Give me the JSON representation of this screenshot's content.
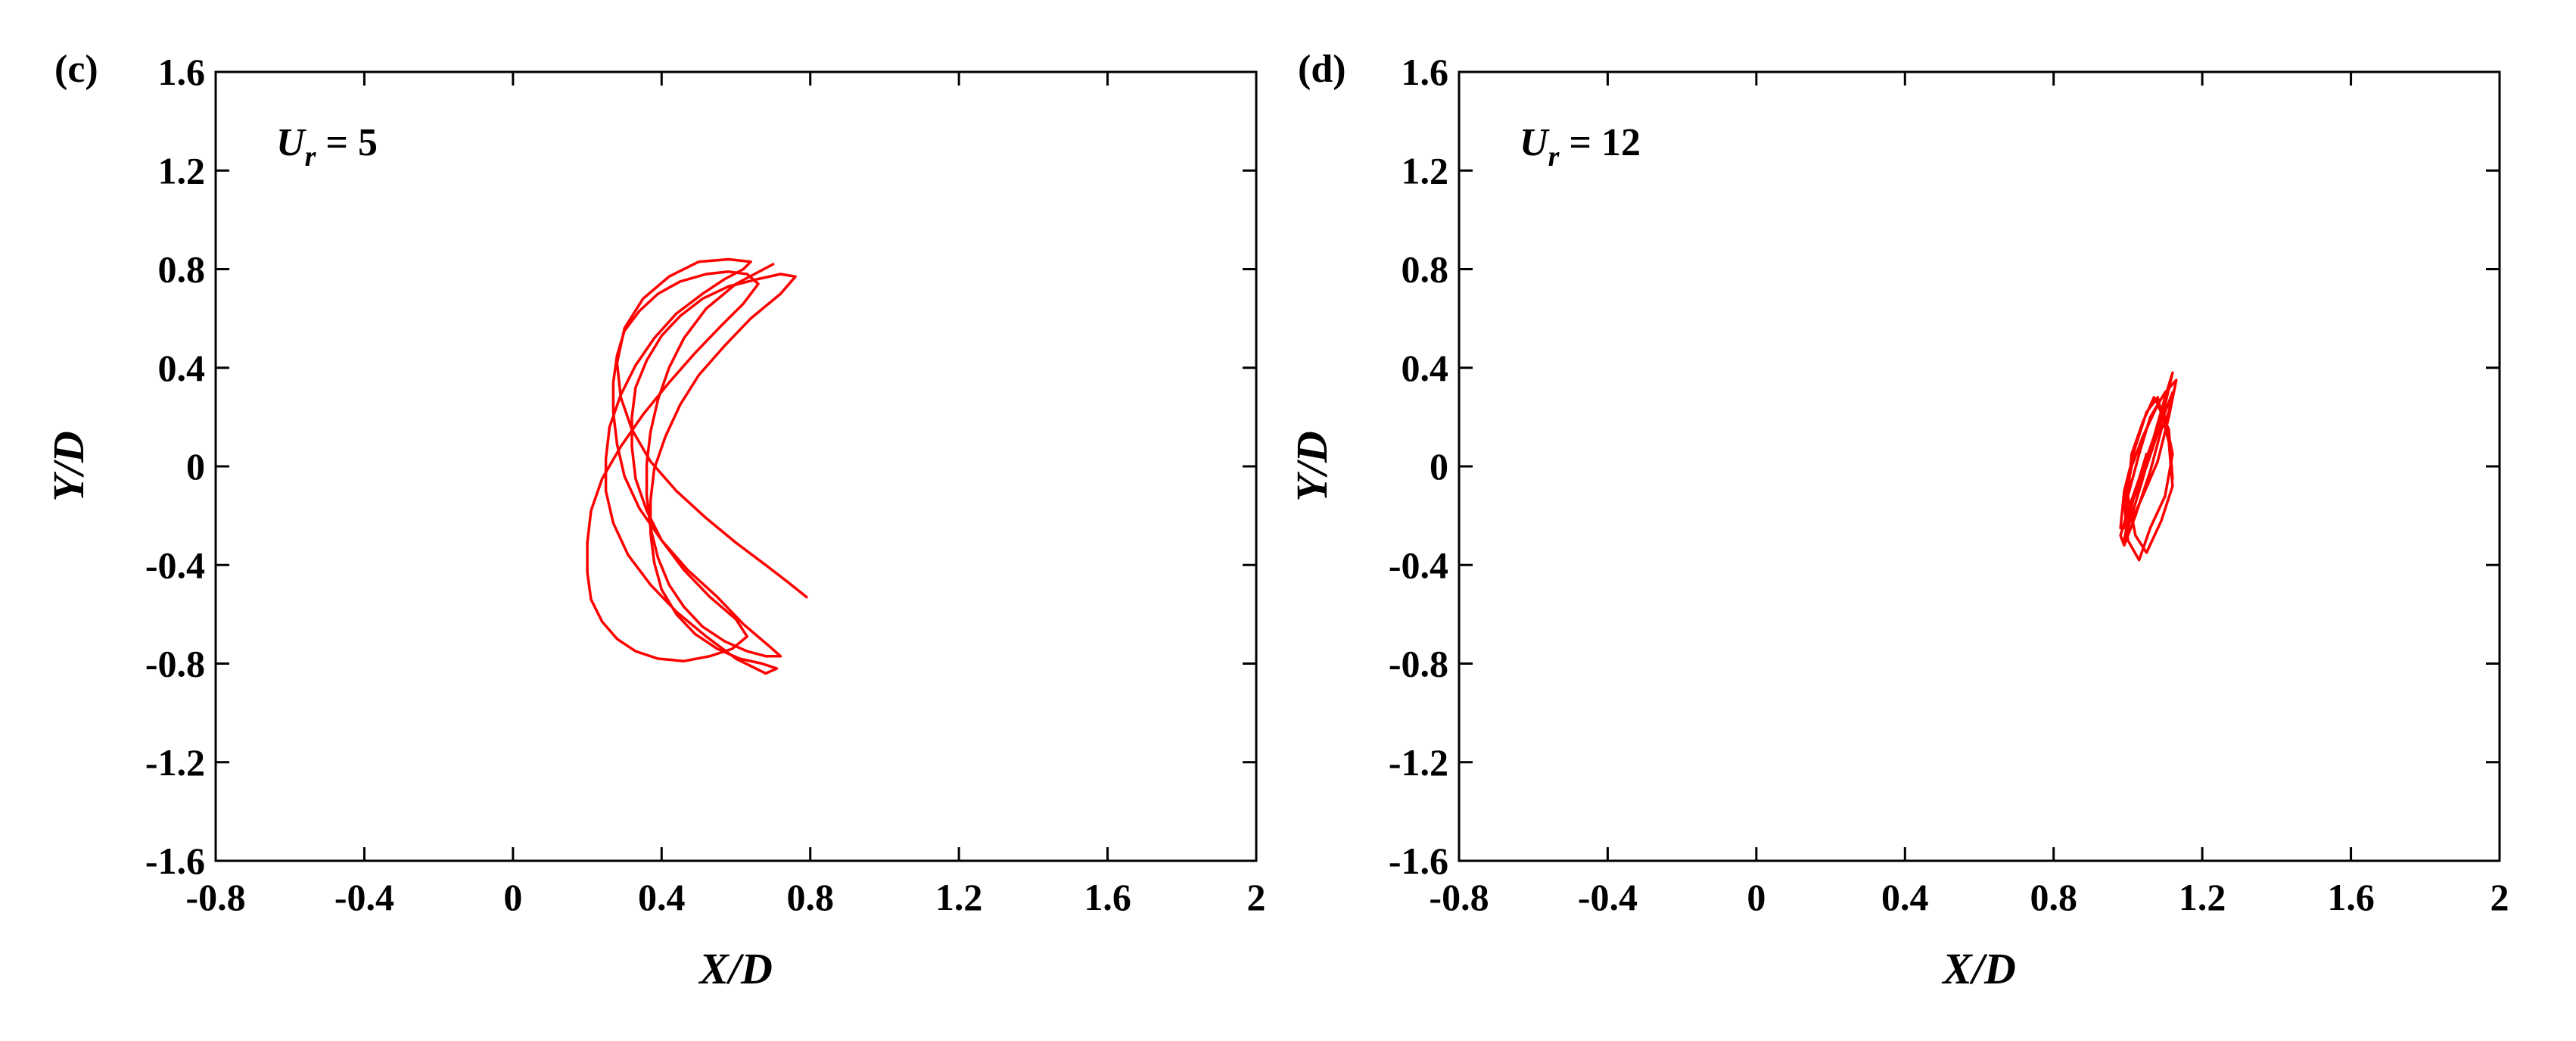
{
  "figure": {
    "panels_count": 2
  },
  "chart_data": [
    {
      "type": "line",
      "panel_label": "(c)",
      "annotation": {
        "symbol": "U",
        "subscript": "r",
        "value": " = 5"
      },
      "xlabel": "X/D",
      "ylabel": "Y/D",
      "xlim": [
        -0.8,
        2
      ],
      "ylim": [
        -1.6,
        1.6
      ],
      "xticks": [
        -0.8,
        -0.4,
        0,
        0.4,
        0.8,
        1.2,
        1.6,
        2
      ],
      "yticks": [
        -1.6,
        -1.2,
        -0.8,
        -0.4,
        0,
        0.4,
        0.8,
        1.2,
        1.6
      ],
      "xtick_labels": [
        "-0.8",
        "-0.4",
        "0",
        "0.4",
        "0.8",
        "1.2",
        "1.6",
        "2"
      ],
      "ytick_labels": [
        "-1.6",
        "-1.2",
        "-0.8",
        "-0.4",
        "0",
        "0.4",
        "0.8",
        "1.2",
        "1.6"
      ],
      "grid": false,
      "line_color": "#ff0000",
      "series": [
        {
          "x": [
            0.7,
            0.6,
            0.52,
            0.46,
            0.42,
            0.39,
            0.37,
            0.36,
            0.36,
            0.37,
            0.39,
            0.42,
            0.46,
            0.51,
            0.57,
            0.63,
            0.68,
            0.72,
            0.69,
            0.62,
            0.55,
            0.47,
            0.4,
            0.34,
            0.3,
            0.28,
            0.27,
            0.27,
            0.28,
            0.3,
            0.34,
            0.39,
            0.45,
            0.52,
            0.58,
            0.63,
            0.66,
            0.62,
            0.56,
            0.49,
            0.42,
            0.35,
            0.29,
            0.24,
            0.21,
            0.2,
            0.2,
            0.21,
            0.24,
            0.28,
            0.33,
            0.39,
            0.46,
            0.53,
            0.59,
            0.63,
            0.6,
            0.53,
            0.46,
            0.4,
            0.36,
            0.33,
            0.32,
            0.32,
            0.33,
            0.36,
            0.4,
            0.45,
            0.51,
            0.58,
            0.66,
            0.72,
            0.76,
            0.72,
            0.64,
            0.57,
            0.5,
            0.45,
            0.41,
            0.38,
            0.37,
            0.37,
            0.38,
            0.4,
            0.44,
            0.49,
            0.55,
            0.61,
            0.67,
            0.71,
            0.68,
            0.6,
            0.52,
            0.44,
            0.37,
            0.31,
            0.27,
            0.25,
            0.25,
            0.26,
            0.29,
            0.33,
            0.38,
            0.44,
            0.51,
            0.57,
            0.62,
            0.64,
            0.58,
            0.5,
            0.42,
            0.35,
            0.3,
            0.28,
            0.29,
            0.32,
            0.37,
            0.44,
            0.52,
            0.6,
            0.68,
            0.74,
            0.79
          ],
          "y": [
            0.82,
            0.74,
            0.64,
            0.52,
            0.4,
            0.27,
            0.14,
            0.01,
            -0.12,
            -0.25,
            -0.37,
            -0.48,
            -0.57,
            -0.65,
            -0.71,
            -0.75,
            -0.77,
            -0.77,
            -0.73,
            -0.64,
            -0.53,
            -0.42,
            -0.3,
            -0.17,
            -0.04,
            0.09,
            0.22,
            0.34,
            0.45,
            0.55,
            0.63,
            0.7,
            0.75,
            0.78,
            0.79,
            0.78,
            0.74,
            0.66,
            0.57,
            0.46,
            0.34,
            0.21,
            0.08,
            -0.05,
            -0.18,
            -0.31,
            -0.43,
            -0.54,
            -0.63,
            -0.7,
            -0.75,
            -0.78,
            -0.79,
            -0.77,
            -0.74,
            -0.69,
            -0.62,
            -0.53,
            -0.42,
            -0.3,
            -0.18,
            -0.05,
            0.08,
            0.2,
            0.32,
            0.43,
            0.53,
            0.61,
            0.68,
            0.73,
            0.76,
            0.78,
            0.77,
            0.7,
            0.6,
            0.49,
            0.37,
            0.25,
            0.12,
            -0.01,
            -0.14,
            -0.27,
            -0.39,
            -0.5,
            -0.6,
            -0.68,
            -0.74,
            -0.78,
            -0.8,
            -0.82,
            -0.84,
            -0.78,
            -0.69,
            -0.59,
            -0.48,
            -0.36,
            -0.23,
            -0.1,
            0.03,
            0.16,
            0.29,
            0.41,
            0.52,
            0.62,
            0.7,
            0.76,
            0.8,
            0.83,
            0.84,
            0.83,
            0.77,
            0.68,
            0.56,
            0.42,
            0.28,
            0.15,
            0.02,
            -0.1,
            -0.21,
            -0.31,
            -0.4,
            -0.47,
            -0.53
          ]
        }
      ]
    },
    {
      "type": "line",
      "panel_label": "(d)",
      "annotation": {
        "symbol": "U",
        "subscript": "r",
        "value": " = 12"
      },
      "xlabel": "X/D",
      "ylabel": "Y/D",
      "xlim": [
        -0.8,
        2
      ],
      "ylim": [
        -1.6,
        1.6
      ],
      "xticks": [
        -0.8,
        -0.4,
        0,
        0.4,
        0.8,
        1.2,
        1.6,
        2
      ],
      "yticks": [
        -1.6,
        -1.2,
        -0.8,
        -0.4,
        0,
        0.4,
        0.8,
        1.2,
        1.6
      ],
      "xtick_labels": [
        "-0.8",
        "-0.4",
        "0",
        "0.4",
        "0.8",
        "1.2",
        "1.6",
        "2"
      ],
      "ytick_labels": [
        "-1.6",
        "-1.2",
        "-0.8",
        "-0.4",
        "0",
        "0.4",
        "0.8",
        "1.2",
        "1.6"
      ],
      "grid": false,
      "line_color": "#ff0000",
      "series": [
        {
          "x": [
            1.05,
            1.02,
            1.0,
            0.99,
            1.01,
            1.04,
            1.07,
            1.1,
            1.12,
            1.1,
            1.07,
            1.03,
            1.0,
            0.98,
            0.99,
            1.02,
            1.06,
            1.09,
            1.11,
            1.12,
            1.09,
            1.05,
            1.01,
            0.99,
            1.0,
            1.03,
            1.06,
            1.1,
            1.13,
            1.11,
            1.08,
            1.04,
            1.01,
            0.98,
            0.99,
            1.02,
            1.05,
            1.08,
            1.11,
            1.12,
            1.09,
            1.05,
            1.02,
            1.0,
            1.01,
            1.04,
            1.07,
            1.1,
            1.12,
            1.1,
            1.06,
            1.03,
            1.0,
            0.99,
            1.01,
            1.04,
            1.08,
            1.11,
            1.12
          ],
          "y": [
            0.05,
            -0.1,
            -0.22,
            -0.3,
            -0.2,
            -0.05,
            0.12,
            0.25,
            0.38,
            0.28,
            0.12,
            -0.05,
            -0.18,
            -0.28,
            -0.32,
            -0.2,
            -0.02,
            0.15,
            0.22,
            0.3,
            0.18,
            0.0,
            -0.15,
            -0.25,
            -0.12,
            0.05,
            0.2,
            0.3,
            0.35,
            0.2,
            0.02,
            -0.12,
            -0.22,
            -0.25,
            -0.1,
            0.08,
            0.22,
            0.28,
            0.1,
            -0.08,
            -0.22,
            -0.35,
            -0.28,
            -0.12,
            0.05,
            0.18,
            0.28,
            0.2,
            0.05,
            -0.12,
            -0.25,
            -0.38,
            -0.3,
            -0.15,
            0.0,
            0.12,
            0.25,
            0.15,
            -0.05
          ]
        }
      ]
    }
  ]
}
